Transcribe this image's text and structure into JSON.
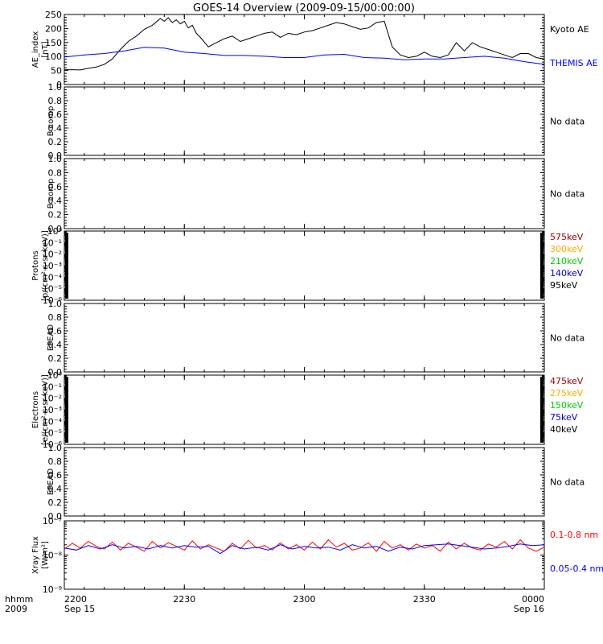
{
  "title": "GOES-14 Overview (2009-09-15/00:00:00)",
  "colors": {
    "black": "#000000",
    "blue": "#0000ff",
    "red": "#ff0000",
    "darkred": "#990000",
    "orange": "#ffaa00",
    "green": "#00cc00",
    "navy": "#0000cc"
  },
  "time_axis": {
    "row_labels": [
      "hhmm",
      "2009"
    ],
    "ticks": [
      {
        "t": 0,
        "label": "2200",
        "sub": "Sep 15"
      },
      {
        "t": 30,
        "label": "2230",
        "sub": ""
      },
      {
        "t": 60,
        "label": "2300",
        "sub": ""
      },
      {
        "t": 90,
        "label": "2330",
        "sub": ""
      },
      {
        "t": 120,
        "label": "0000",
        "sub": "Sep 16"
      }
    ]
  },
  "chart_data": [
    {
      "type": "line",
      "ylabel": [
        "AE_index",
        "[nT]"
      ],
      "ylim": [
        0,
        260
      ],
      "yticks": [
        "0",
        "50",
        "100",
        "150",
        "200",
        "250"
      ],
      "xlim": [
        0,
        120
      ],
      "series": [
        {
          "name": "Kyoto AE",
          "color": "#000000",
          "x": [
            0,
            2,
            4,
            6,
            8,
            10,
            12,
            14,
            16,
            18,
            20,
            22,
            24,
            25,
            26,
            27,
            28,
            29,
            30,
            31,
            32,
            33,
            34,
            36,
            38,
            40,
            42,
            44,
            46,
            48,
            50,
            52,
            54,
            56,
            58,
            60,
            62,
            64,
            66,
            68,
            70,
            72,
            74,
            76,
            78,
            80,
            82,
            84,
            86,
            88,
            90,
            92,
            94,
            96,
            98,
            100,
            102,
            104,
            106,
            108,
            110,
            112,
            114,
            116,
            118,
            120
          ],
          "y": [
            55,
            55,
            54,
            60,
            65,
            75,
            95,
            130,
            160,
            180,
            205,
            220,
            245,
            235,
            248,
            230,
            240,
            225,
            235,
            210,
            220,
            190,
            175,
            140,
            155,
            170,
            180,
            160,
            170,
            180,
            190,
            195,
            175,
            190,
            185,
            195,
            200,
            210,
            220,
            230,
            225,
            215,
            205,
            210,
            230,
            235,
            140,
            110,
            100,
            105,
            120,
            105,
            100,
            110,
            155,
            125,
            155,
            140,
            130,
            120,
            110,
            100,
            115,
            115,
            100,
            95
          ]
        },
        {
          "name": "THEMIS AE",
          "color": "#0000ff",
          "x": [
            0,
            5,
            10,
            15,
            20,
            25,
            30,
            35,
            40,
            45,
            50,
            55,
            60,
            65,
            70,
            75,
            80,
            85,
            90,
            95,
            100,
            105,
            110,
            115,
            120
          ],
          "y": [
            102,
            110,
            115,
            125,
            138,
            135,
            120,
            115,
            108,
            108,
            105,
            100,
            100,
            110,
            112,
            100,
            98,
            92,
            95,
            95,
            100,
            105,
            98,
            85,
            75
          ]
        }
      ]
    },
    {
      "type": "line",
      "ylabel": [
        "B comp"
      ],
      "ylim": [
        0,
        1
      ],
      "yticks": [
        "0.0",
        "0.2",
        "0.4",
        "0.6",
        "0.8",
        "1.0"
      ],
      "note": "No data",
      "series": []
    },
    {
      "type": "line",
      "ylabel": [
        "B comp"
      ],
      "ylim": [
        0,
        1
      ],
      "yticks": [
        "0.0",
        "0.2",
        "0.4",
        "0.6",
        "0.8",
        "1.0"
      ],
      "note": "No data",
      "series": []
    },
    {
      "type": "line",
      "scale": "log",
      "ylabel": [
        "Protons",
        "[p/(cm²-s-sr-keV)]"
      ],
      "ylim": [
        1e-06,
        1
      ],
      "yticks": [
        "10⁻⁶",
        "10⁻⁵",
        "10⁻⁴",
        "10⁻³",
        "10⁻²",
        "10⁻¹",
        "10⁰"
      ],
      "legend": [
        {
          "name": "575keV",
          "color": "#990000"
        },
        {
          "name": "300keV",
          "color": "#ffaa00"
        },
        {
          "name": "210keV",
          "color": "#00cc00"
        },
        {
          "name": "140keV",
          "color": "#0000cc"
        },
        {
          "name": "95keV",
          "color": "#000000"
        }
      ],
      "series": []
    },
    {
      "type": "line",
      "ylabel": [
        "EPEAD"
      ],
      "ylim": [
        0,
        1
      ],
      "yticks": [
        "0.0",
        "0.2",
        "0.4",
        "0.6",
        "0.8",
        "1.0"
      ],
      "note": "No data",
      "series": []
    },
    {
      "type": "line",
      "scale": "log",
      "ylabel": [
        "Electrons",
        "[e/(cm²-s-sr-keV)]"
      ],
      "ylim": [
        1e-06,
        1
      ],
      "yticks": [
        "10⁻⁶",
        "10⁻⁵",
        "10⁻⁴",
        "10⁻³",
        "10⁻²",
        "10⁻¹",
        "10⁰"
      ],
      "legend": [
        {
          "name": "475keV",
          "color": "#990000"
        },
        {
          "name": "275keV",
          "color": "#ffaa00"
        },
        {
          "name": "150keV",
          "color": "#00cc00"
        },
        {
          "name": "75keV",
          "color": "#0000cc"
        },
        {
          "name": "40keV",
          "color": "#000000"
        }
      ],
      "series": []
    },
    {
      "type": "line",
      "ylabel": [
        "EPEAD"
      ],
      "ylim": [
        0,
        1
      ],
      "yticks": [
        "0.0",
        "0.2",
        "0.4",
        "0.6",
        "0.8",
        "1.0"
      ],
      "note": "No data",
      "series": []
    },
    {
      "type": "line",
      "scale": "log",
      "ylabel": [
        "Xray Flux",
        "[W/m²]"
      ],
      "ylim": [
        1e-09,
        1e-07
      ],
      "yticks": [
        "10⁻⁹",
        "10⁻⁸",
        "10⁻⁷"
      ],
      "xlim": [
        0,
        120
      ],
      "series": [
        {
          "name": "0.1-0.8 nm",
          "color": "#ff0000",
          "x": [
            0,
            2,
            4,
            6,
            8,
            10,
            12,
            14,
            16,
            18,
            20,
            22,
            24,
            26,
            28,
            30,
            32,
            34,
            36,
            38,
            40,
            42,
            44,
            46,
            48,
            50,
            52,
            54,
            56,
            58,
            60,
            62,
            64,
            66,
            68,
            70,
            72,
            74,
            76,
            78,
            80,
            82,
            84,
            86,
            88,
            90,
            92,
            94,
            96,
            98,
            100,
            102,
            104,
            106,
            108,
            110,
            112,
            114,
            116,
            118,
            120
          ],
          "y": [
            1.5e-08,
            2.2e-08,
            1.6e-08,
            2.5e-08,
            1.8e-08,
            1.5e-08,
            2.4e-08,
            1.4e-08,
            2.2e-08,
            1.7e-08,
            1.3e-08,
            2.5e-08,
            1.6e-08,
            2.3e-08,
            1.8e-08,
            1.4e-08,
            2.6e-08,
            1.5e-08,
            2e-08,
            1.6e-08,
            1.3e-08,
            2.2e-08,
            1.5e-08,
            2.7e-08,
            1.6e-08,
            1.9e-08,
            1.4e-08,
            2.3e-08,
            1.5e-08,
            2e-08,
            1.4e-08,
            2.4e-08,
            1.5e-08,
            2.8e-08,
            1.7e-08,
            2.2e-08,
            1.4e-08,
            1.6e-08,
            2.3e-08,
            1.3e-08,
            2.5e-08,
            1.6e-08,
            2e-08,
            1.4e-08,
            2.1e-08,
            1.6e-08,
            1.9e-08,
            1.3e-08,
            2.4e-08,
            1.5e-08,
            2.2e-08,
            1.6e-08,
            1.4e-08,
            2.1e-08,
            1.7e-08,
            2.5e-08,
            1.5e-08,
            2.8e-08,
            1.6e-08,
            1.3e-08,
            1.7e-08
          ]
        },
        {
          "name": "0.05-0.4 nm",
          "color": "#0000ff",
          "x": [
            0,
            3,
            6,
            9,
            12,
            15,
            18,
            21,
            24,
            27,
            30,
            33,
            36,
            39,
            42,
            45,
            48,
            51,
            54,
            57,
            60,
            63,
            66,
            69,
            72,
            75,
            78,
            81,
            84,
            87,
            90,
            93,
            96,
            99,
            102,
            105,
            108,
            111,
            114,
            117,
            120
          ],
          "y": [
            1.6e-08,
            1.4e-08,
            1.9e-08,
            1.5e-08,
            2e-08,
            1.6e-08,
            1.8e-08,
            1.5e-08,
            1.9e-08,
            1.6e-08,
            1.9e-08,
            1.7e-08,
            1.8e-08,
            1.1e-08,
            1.9e-08,
            1.5e-08,
            1.7e-08,
            1.4e-08,
            2e-08,
            1.5e-08,
            1.8e-08,
            1.6e-08,
            1.7e-08,
            1.4e-08,
            2e-08,
            1.6e-08,
            1.8e-08,
            1.3e-08,
            1.7e-08,
            1.5e-08,
            1.9e-08,
            2e-08,
            2.1e-08,
            1.9e-08,
            1.7e-08,
            1.5e-08,
            1.6e-08,
            1.8e-08,
            2.1e-08,
            1.9e-08,
            2e-08
          ]
        }
      ]
    }
  ],
  "xray_legend_lines": [
    {
      "label": "0.1-0.8 nm",
      "color": "#ff0000"
    },
    {
      "label": "0.05-0.4 nm",
      "color": "#0000ff"
    }
  ]
}
